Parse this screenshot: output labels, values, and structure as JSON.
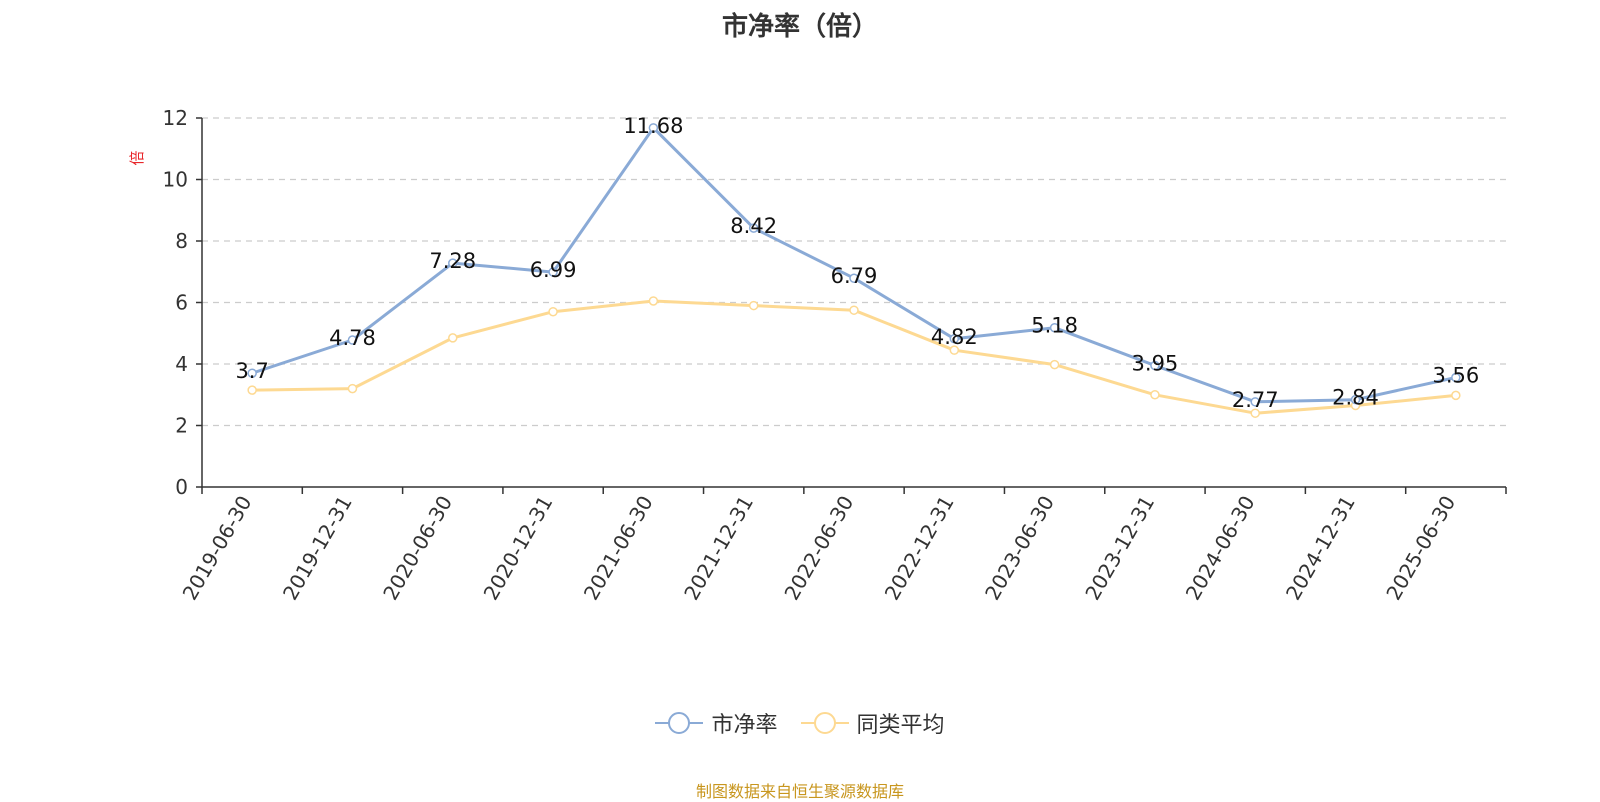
{
  "title": "市净率（倍）",
  "source_text": "制图数据来自恒生聚源数据库",
  "colors": {
    "series1": "#8aaad6",
    "series2": "#fdd992",
    "axis": "#333333",
    "grid": "#cccccc",
    "ylabel": "#e8262a",
    "source": "#c8961e"
  },
  "chart_data": {
    "type": "line",
    "title": "市净率（倍）",
    "ylabel": "倍",
    "xlabel": "",
    "ylim": [
      0,
      12
    ],
    "yticks": [
      0,
      2,
      4,
      6,
      8,
      10,
      12
    ],
    "grid": true,
    "legend_position": "bottom-center",
    "x": [
      "2019-06-30",
      "2019-12-31",
      "2020-06-30",
      "2020-12-31",
      "2021-06-30",
      "2021-12-31",
      "2022-06-30",
      "2022-12-31",
      "2023-06-30",
      "2023-12-31",
      "2024-06-30",
      "2024-12-31",
      "2025-06-30"
    ],
    "series": [
      {
        "name": "市净率",
        "values": [
          3.7,
          4.78,
          7.28,
          6.99,
          11.68,
          8.42,
          6.79,
          4.82,
          5.18,
          3.95,
          2.77,
          2.84,
          3.56
        ],
        "labels": [
          "3.7",
          "4.78",
          "7.28",
          "6.99",
          "11.68",
          "8.42",
          "6.79",
          "4.82",
          "5.18",
          "3.95",
          "2.77",
          "2.84",
          "3.56"
        ]
      },
      {
        "name": "同类平均",
        "values": [
          3.15,
          3.2,
          4.85,
          5.7,
          6.05,
          5.9,
          5.75,
          4.45,
          3.98,
          3.0,
          2.4,
          2.65,
          2.98
        ]
      }
    ]
  }
}
